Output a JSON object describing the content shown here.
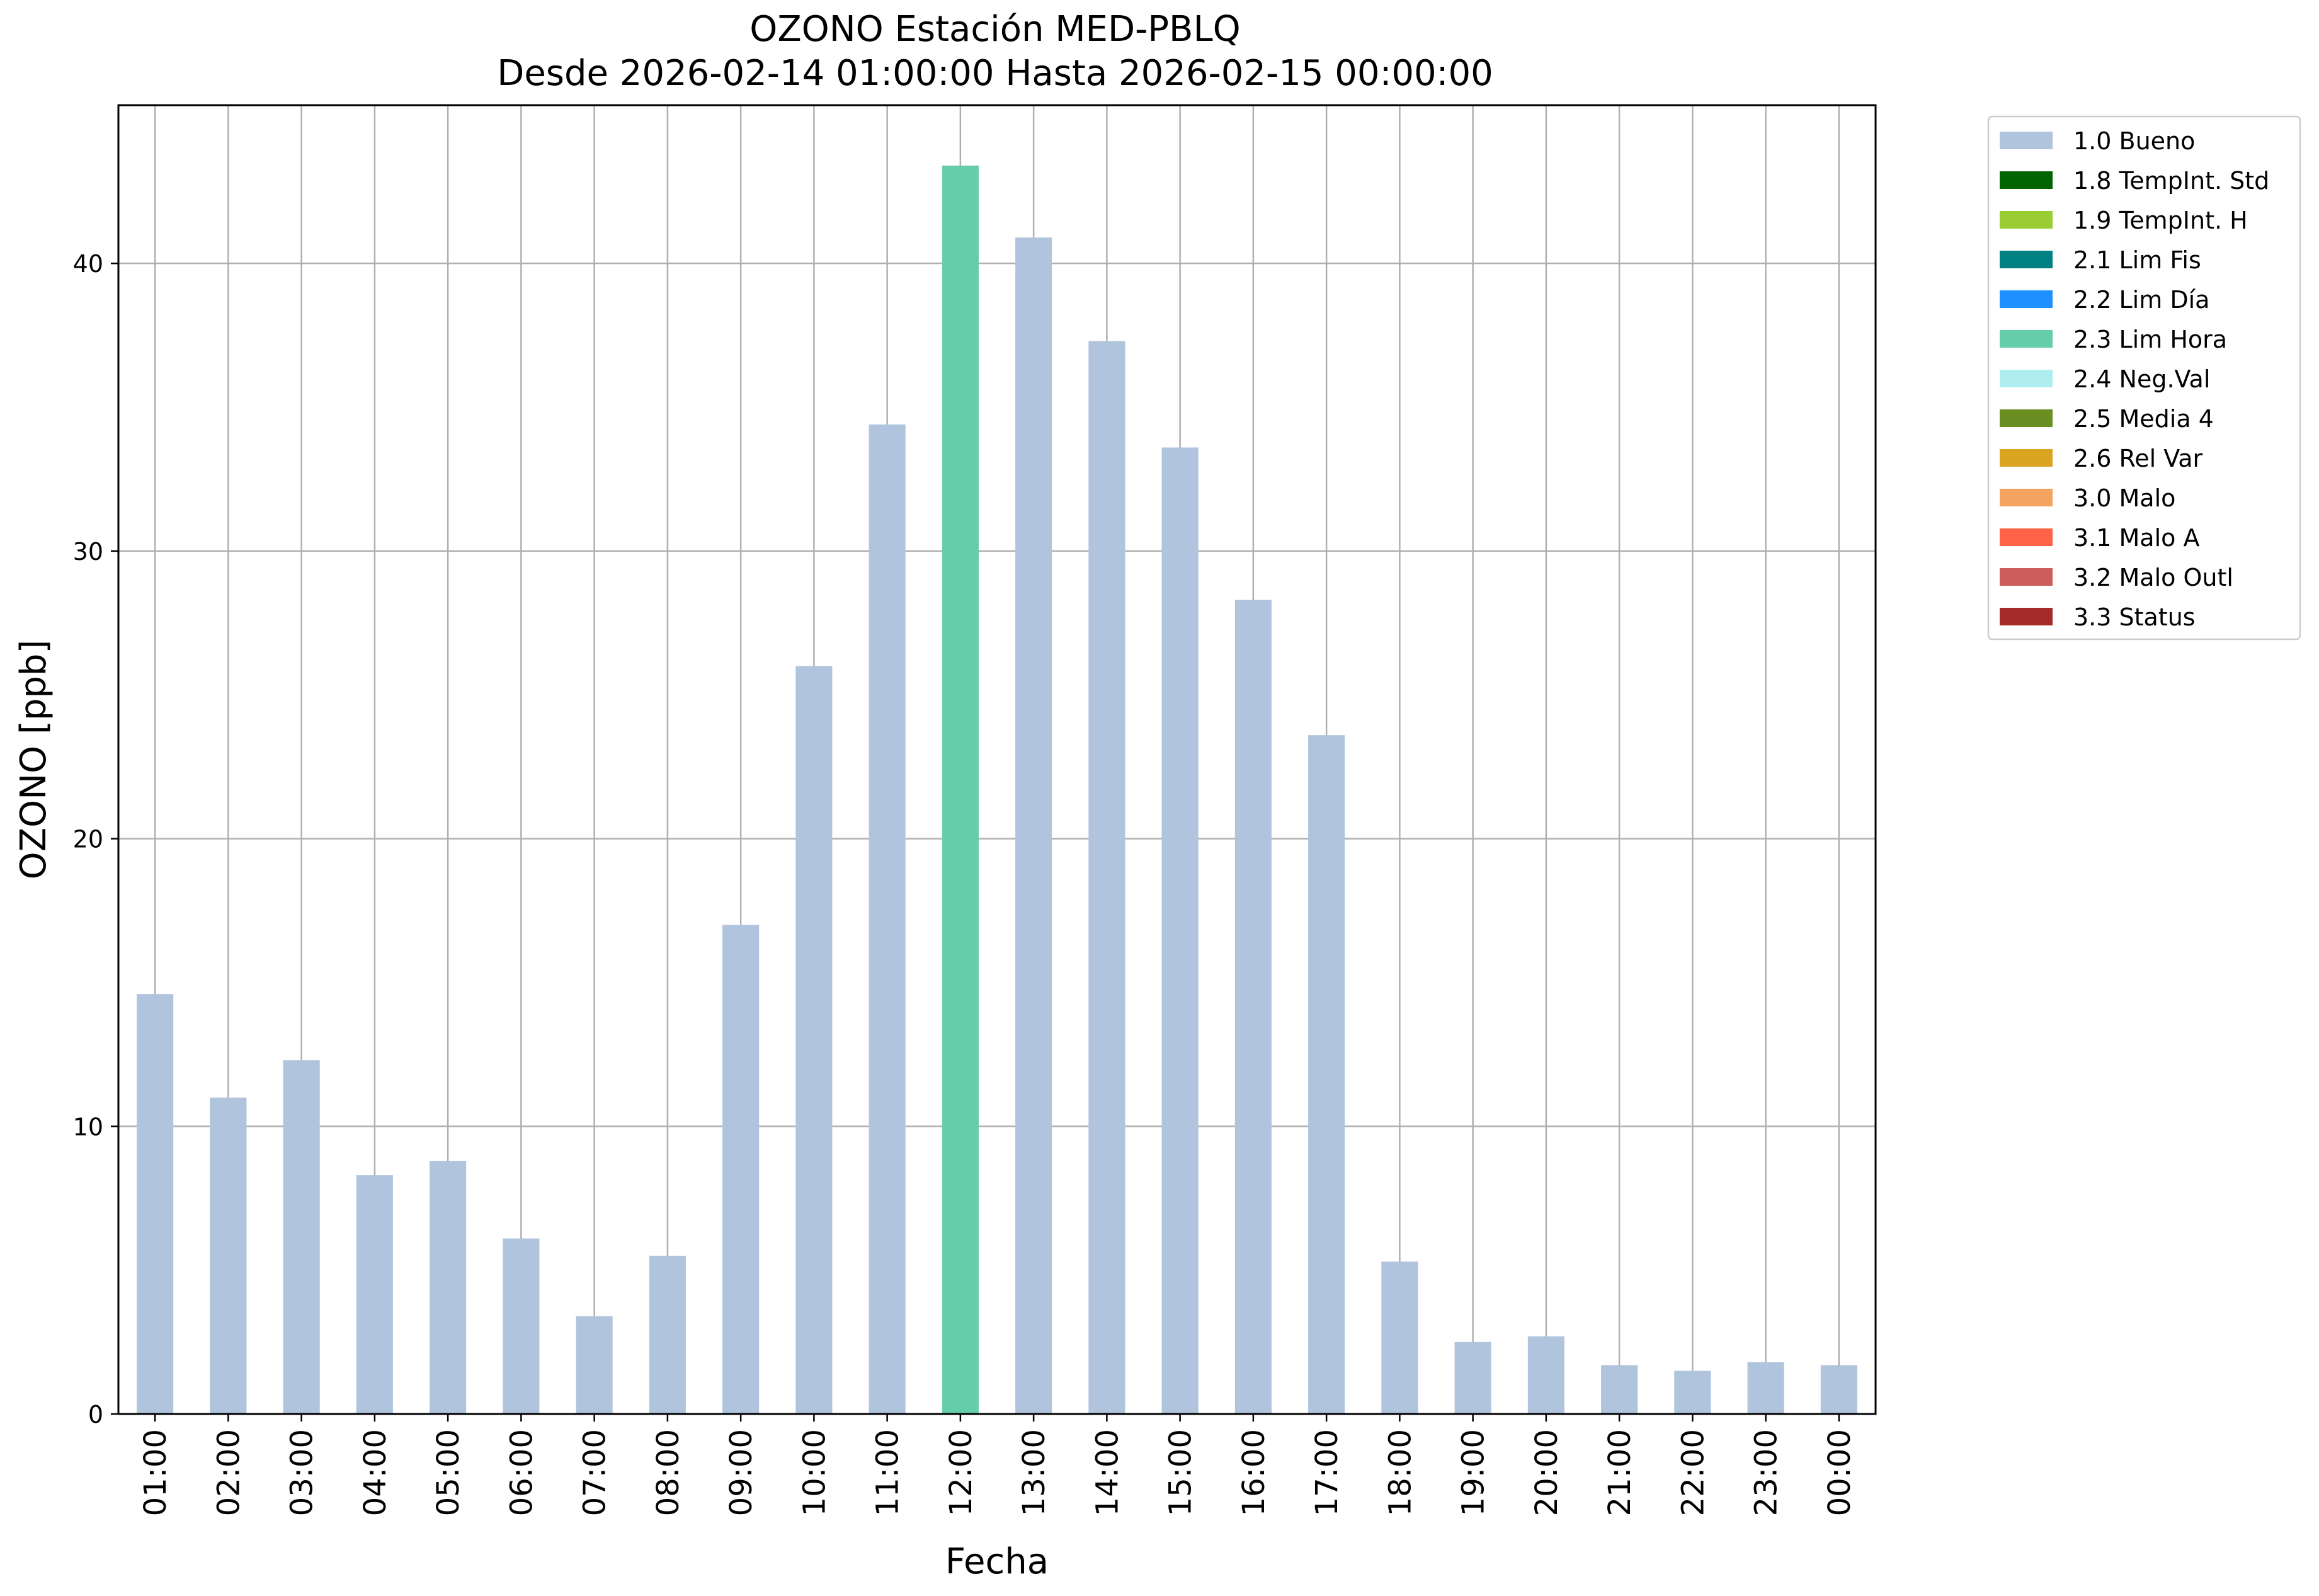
{
  "title": "OZONO Estación MED-PBLQ",
  "subtitle": "Desde 2026-02-14 01:00:00 Hasta 2026-02-15 00:00:00",
  "chart_data": {
    "type": "bar",
    "title": "OZONO Estación MED-PBLQ",
    "subtitle": "Desde 2026-02-14 01:00:00 Hasta 2026-02-15 00:00:00",
    "xlabel": "Fecha",
    "ylabel": "OZONO [ppb]",
    "ylim": [
      0,
      45.5
    ],
    "yticks": [
      0,
      10,
      20,
      30,
      40
    ],
    "grid": true,
    "legend_position": "outside-top-right",
    "categories": [
      "01:00",
      "02:00",
      "03:00",
      "04:00",
      "05:00",
      "06:00",
      "07:00",
      "08:00",
      "09:00",
      "10:00",
      "11:00",
      "12:00",
      "13:00",
      "14:00",
      "15:00",
      "16:00",
      "17:00",
      "18:00",
      "19:00",
      "20:00",
      "21:00",
      "22:00",
      "23:00",
      "00:00"
    ],
    "values": [
      14.6,
      11.0,
      12.3,
      8.3,
      8.8,
      6.1,
      3.4,
      5.5,
      17.0,
      26.0,
      34.4,
      43.4,
      40.9,
      37.3,
      33.6,
      28.3,
      23.6,
      5.3,
      2.5,
      2.7,
      1.7,
      1.5,
      1.8,
      1.7
    ],
    "flags": [
      "1.0 Bueno",
      "1.0 Bueno",
      "1.0 Bueno",
      "1.0 Bueno",
      "1.0 Bueno",
      "1.0 Bueno",
      "1.0 Bueno",
      "1.0 Bueno",
      "1.0 Bueno",
      "1.0 Bueno",
      "1.0 Bueno",
      "2.3 Lim Hora",
      "1.0 Bueno",
      "1.0 Bueno",
      "1.0 Bueno",
      "1.0 Bueno",
      "1.0 Bueno",
      "1.0 Bueno",
      "1.0 Bueno",
      "1.0 Bueno",
      "1.0 Bueno",
      "1.0 Bueno",
      "1.0 Bueno",
      "1.0 Bueno"
    ],
    "legend": [
      {
        "label": "1.0 Bueno",
        "color": "#b0c4de"
      },
      {
        "label": "1.8 TempInt. Std",
        "color": "#006400"
      },
      {
        "label": "1.9 TempInt. H",
        "color": "#9acd32"
      },
      {
        "label": "2.1 Lim Fis",
        "color": "#008080"
      },
      {
        "label": "2.2 Lim Día",
        "color": "#1e90ff"
      },
      {
        "label": "2.3 Lim Hora",
        "color": "#66cdaa"
      },
      {
        "label": "2.4 Neg.Val",
        "color": "#afeeee"
      },
      {
        "label": "2.5 Media 4",
        "color": "#6b8e23"
      },
      {
        "label": "2.6 Rel Var",
        "color": "#daa520"
      },
      {
        "label": "3.0 Malo",
        "color": "#f4a460"
      },
      {
        "label": "3.1 Malo A",
        "color": "#ff6347"
      },
      {
        "label": "3.2 Malo Outl",
        "color": "#cd5c5c"
      },
      {
        "label": "3.3 Status",
        "color": "#a52a2a"
      }
    ]
  }
}
